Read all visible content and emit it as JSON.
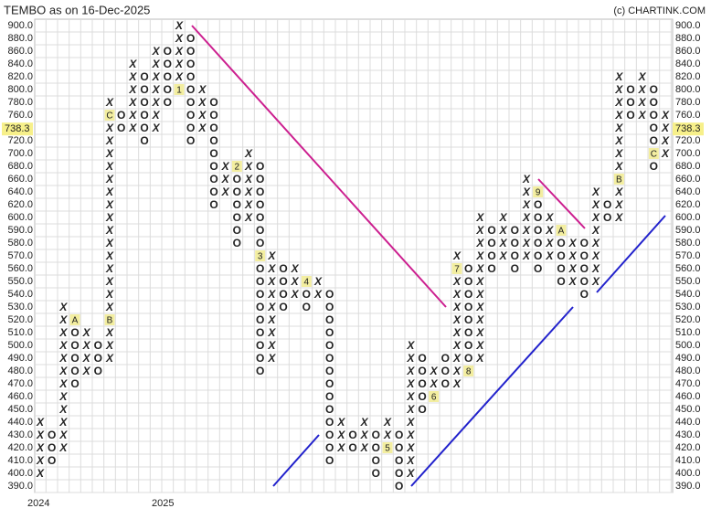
{
  "chart_data": {
    "type": "point-and-figure",
    "title": "TEMBO as on 16-Dec-2025",
    "source": "(c) CHARTINK.COM",
    "x_labels": [
      "2024",
      "2025"
    ],
    "yticks": [
      {
        "value": 900,
        "label": "900.0"
      },
      {
        "value": 880,
        "label": "880.0"
      },
      {
        "value": 860,
        "label": "860.0"
      },
      {
        "value": 840,
        "label": "840.0"
      },
      {
        "value": 820,
        "label": "820.0"
      },
      {
        "value": 800,
        "label": "800.0"
      },
      {
        "value": 780,
        "label": "780.0"
      },
      {
        "value": 760,
        "label": "760.0"
      },
      {
        "value": 740,
        "label": "740.0"
      },
      {
        "value": 720,
        "label": "720.0"
      },
      {
        "value": 700,
        "label": "700.0"
      },
      {
        "value": 680,
        "label": "680.0"
      },
      {
        "value": 660,
        "label": "660.0"
      },
      {
        "value": 640,
        "label": "640.0"
      },
      {
        "value": 620,
        "label": "620.0"
      },
      {
        "value": 600,
        "label": "600.0"
      },
      {
        "value": 590,
        "label": "590.0"
      },
      {
        "value": 580,
        "label": "580.0"
      },
      {
        "value": 570,
        "label": "570.0"
      },
      {
        "value": 560,
        "label": "560.0"
      },
      {
        "value": 550,
        "label": "550.0"
      },
      {
        "value": 540,
        "label": "540.0"
      },
      {
        "value": 530,
        "label": "530.0"
      },
      {
        "value": 520,
        "label": "520.0"
      },
      {
        "value": 510,
        "label": "510.0"
      },
      {
        "value": 500,
        "label": "500.0"
      },
      {
        "value": 490,
        "label": "490.0"
      },
      {
        "value": 480,
        "label": "480.0"
      },
      {
        "value": 470,
        "label": "470.0"
      },
      {
        "value": 460,
        "label": "460.0"
      },
      {
        "value": 450,
        "label": "450.0"
      },
      {
        "value": 440,
        "label": "440.0"
      },
      {
        "value": 430,
        "label": "430.0"
      },
      {
        "value": 420,
        "label": "420.0"
      },
      {
        "value": 410,
        "label": "410.0"
      },
      {
        "value": 400,
        "label": "400.0"
      },
      {
        "value": 390,
        "label": "390.0"
      }
    ],
    "last_price": 738.3,
    "colors": {
      "X": "#2e8b3e",
      "O": "#e8322a",
      "marker": "#f3eea0"
    },
    "columns": [
      {
        "type": "X",
        "low": 400,
        "high": 440
      },
      {
        "type": "O",
        "low": 410,
        "high": 430
      },
      {
        "type": "X",
        "low": 420,
        "high": 530
      },
      {
        "type": "O",
        "low": 470,
        "high": 520,
        "markers": [
          {
            "price": 520,
            "label": "A"
          }
        ]
      },
      {
        "type": "X",
        "low": 480,
        "high": 510
      },
      {
        "type": "O",
        "low": 480,
        "high": 500
      },
      {
        "type": "X",
        "low": 490,
        "high": 780,
        "markers": [
          {
            "price": 520,
            "label": "B"
          },
          {
            "price": 760,
            "label": "C"
          }
        ]
      },
      {
        "type": "O",
        "low": 740,
        "high": 760
      },
      {
        "type": "X",
        "low": 740,
        "high": 840
      },
      {
        "type": "O",
        "low": 720,
        "high": 820
      },
      {
        "type": "X",
        "low": 740,
        "high": 860
      },
      {
        "type": "O",
        "low": 780,
        "high": 860
      },
      {
        "type": "X",
        "low": 800,
        "high": 900,
        "markers": [
          {
            "price": 800,
            "label": "1"
          }
        ]
      },
      {
        "type": "O",
        "low": 720,
        "high": 880
      },
      {
        "type": "X",
        "low": 740,
        "high": 800
      },
      {
        "type": "O",
        "low": 620,
        "high": 780
      },
      {
        "type": "X",
        "low": 640,
        "high": 680
      },
      {
        "type": "O",
        "low": 580,
        "high": 680,
        "markers": [
          {
            "price": 680,
            "label": "2"
          }
        ]
      },
      {
        "type": "X",
        "low": 600,
        "high": 700
      },
      {
        "type": "O",
        "low": 480,
        "high": 680,
        "markers": [
          {
            "price": 570,
            "label": "3"
          }
        ]
      },
      {
        "type": "X",
        "low": 490,
        "high": 570
      },
      {
        "type": "O",
        "low": 530,
        "high": 560
      },
      {
        "type": "X",
        "low": 540,
        "high": 560
      },
      {
        "type": "O",
        "low": 530,
        "high": 550,
        "markers": [
          {
            "price": 550,
            "label": "4"
          }
        ]
      },
      {
        "type": "X",
        "low": 540,
        "high": 550
      },
      {
        "type": "O",
        "low": 410,
        "high": 540
      },
      {
        "type": "X",
        "low": 420,
        "high": 440
      },
      {
        "type": "O",
        "low": 420,
        "high": 430
      },
      {
        "type": "X",
        "low": 420,
        "high": 440
      },
      {
        "type": "O",
        "low": 400,
        "high": 430
      },
      {
        "type": "X",
        "low": 420,
        "high": 440,
        "markers": [
          {
            "price": 420,
            "label": "5"
          }
        ]
      },
      {
        "type": "O",
        "low": 390,
        "high": 430
      },
      {
        "type": "X",
        "low": 400,
        "high": 500
      },
      {
        "type": "O",
        "low": 450,
        "high": 490
      },
      {
        "type": "X",
        "low": 460,
        "high": 480,
        "markers": [
          {
            "price": 460,
            "label": "6"
          }
        ]
      },
      {
        "type": "O",
        "low": 470,
        "high": 490
      },
      {
        "type": "X",
        "low": 470,
        "high": 570,
        "markers": [
          {
            "price": 560,
            "label": "7"
          }
        ]
      },
      {
        "type": "O",
        "low": 480,
        "high": 560,
        "markers": [
          {
            "price": 480,
            "label": "8"
          }
        ]
      },
      {
        "type": "X",
        "low": 490,
        "high": 600
      },
      {
        "type": "O",
        "low": 560,
        "high": 590
      },
      {
        "type": "X",
        "low": 570,
        "high": 600
      },
      {
        "type": "O",
        "low": 560,
        "high": 590
      },
      {
        "type": "X",
        "low": 570,
        "high": 660
      },
      {
        "type": "O",
        "low": 560,
        "high": 640,
        "markers": [
          {
            "price": 640,
            "label": "9"
          }
        ]
      },
      {
        "type": "X",
        "low": 570,
        "high": 600
      },
      {
        "type": "O",
        "low": 550,
        "high": 590,
        "markers": [
          {
            "price": 590,
            "label": "A"
          }
        ]
      },
      {
        "type": "X",
        "low": 550,
        "high": 580
      },
      {
        "type": "O",
        "low": 540,
        "high": 580
      },
      {
        "type": "X",
        "low": 550,
        "high": 640
      },
      {
        "type": "O",
        "low": 600,
        "high": 620
      },
      {
        "type": "X",
        "low": 600,
        "high": 820,
        "markers": [
          {
            "price": 660,
            "label": "B"
          }
        ]
      },
      {
        "type": "O",
        "low": 760,
        "high": 800
      },
      {
        "type": "X",
        "low": 760,
        "high": 820
      },
      {
        "type": "O",
        "low": 680,
        "high": 800,
        "markers": [
          {
            "price": 700,
            "label": "C"
          }
        ]
      },
      {
        "type": "X",
        "low": 700,
        "high": 760
      }
    ]
  }
}
